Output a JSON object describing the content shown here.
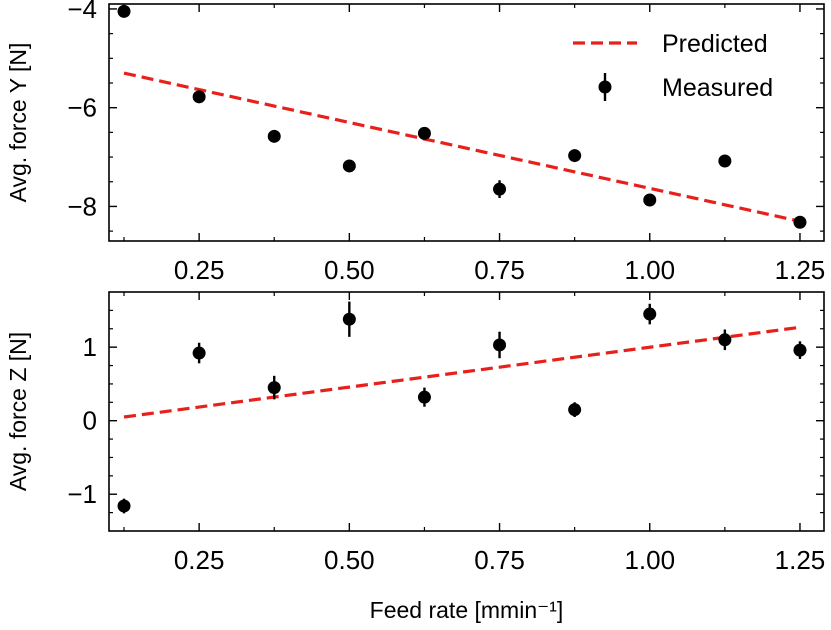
{
  "chart_data": [
    {
      "type": "scatter",
      "title": "",
      "xlabel": "",
      "ylabel": "Avg. force Y [N]",
      "xlim": [
        0.1,
        1.29
      ],
      "ylim": [
        -8.7,
        -3.9
      ],
      "xticks": [
        0.25,
        0.5,
        0.75,
        1.0,
        1.25
      ],
      "xtick_labels": [
        "0.25",
        "0.50",
        "0.75",
        "1.00",
        "1.25"
      ],
      "yticks": [
        -8,
        -6,
        -4
      ],
      "ytick_labels": [
        "−8",
        "−6",
        "−4"
      ],
      "minor_xticks": [
        0.125,
        0.375,
        0.625,
        0.875,
        1.125
      ],
      "minor_yticks": [
        -8.5,
        -7.5,
        -7,
        -6.5,
        -5.5,
        -5,
        -4.5
      ],
      "legend_position": "top-right",
      "series": [
        {
          "name": "Predicted",
          "kind": "line",
          "style": "dashed",
          "color": "#e8201c",
          "x": [
            0.125,
            1.25
          ],
          "y": [
            -5.3,
            -8.3
          ]
        },
        {
          "name": "Measured",
          "kind": "errorbar",
          "color": "#000000",
          "x": [
            0.125,
            0.25,
            0.375,
            0.5,
            0.625,
            0.75,
            0.875,
            1.0,
            1.125,
            1.25
          ],
          "y": [
            -4.05,
            -5.78,
            -6.58,
            -7.18,
            -6.52,
            -7.65,
            -6.97,
            -7.87,
            -7.08,
            -8.32
          ],
          "yerr": [
            0.05,
            0.07,
            0.07,
            0.07,
            0.07,
            0.18,
            0.08,
            0.08,
            0.06,
            0.12
          ]
        }
      ]
    },
    {
      "type": "scatter",
      "title": "",
      "xlabel": "Feed rate [mmin⁻¹]",
      "ylabel": "Avg. force Z [N]",
      "xlim": [
        0.1,
        1.29
      ],
      "ylim": [
        -1.5,
        1.75
      ],
      "xticks": [
        0.25,
        0.5,
        0.75,
        1.0,
        1.25
      ],
      "xtick_labels": [
        "0.25",
        "0.50",
        "0.75",
        "1.00",
        "1.25"
      ],
      "yticks": [
        -1,
        0,
        1
      ],
      "ytick_labels": [
        "−1",
        "0",
        "1"
      ],
      "minor_xticks": [
        0.125,
        0.375,
        0.625,
        0.875,
        1.125
      ],
      "minor_yticks": [
        -1.25,
        -0.75,
        -0.5,
        -0.25,
        0.25,
        0.5,
        0.75,
        1.25,
        1.5
      ],
      "series": [
        {
          "name": "Predicted",
          "kind": "line",
          "style": "dashed",
          "color": "#e8201c",
          "x": [
            0.125,
            1.25
          ],
          "y": [
            0.05,
            1.27
          ]
        },
        {
          "name": "Measured",
          "kind": "errorbar",
          "color": "#000000",
          "x": [
            0.125,
            0.25,
            0.375,
            0.5,
            0.625,
            0.75,
            0.875,
            1.0,
            1.125,
            1.25
          ],
          "y": [
            -1.16,
            0.92,
            0.45,
            1.38,
            0.32,
            1.03,
            0.15,
            1.45,
            1.1,
            0.96
          ],
          "yerr": [
            0.1,
            0.14,
            0.16,
            0.24,
            0.13,
            0.18,
            0.1,
            0.14,
            0.14,
            0.12
          ]
        }
      ]
    }
  ]
}
